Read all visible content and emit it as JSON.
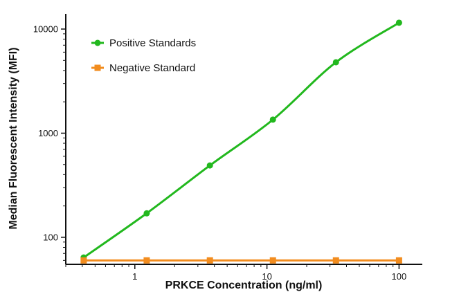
{
  "chart_data": {
    "type": "line",
    "title": "",
    "xlabel": "PRKCE Concentration (ng/ml)",
    "ylabel": "Median Fluorescent Intensity (MFI)",
    "x_scale": "log",
    "y_scale": "log",
    "xlim": [
      0.3,
      150
    ],
    "ylim": [
      55,
      14000
    ],
    "x_ticks": [
      1,
      10,
      100
    ],
    "x_tick_labels": [
      "1",
      "10",
      "100"
    ],
    "y_ticks": [
      100,
      1000,
      10000
    ],
    "y_tick_labels": [
      "100",
      "1000",
      "10000"
    ],
    "grid": false,
    "legend_position": "top-left",
    "series": [
      {
        "name": "Positive Standards",
        "color": "#22b81e",
        "marker": "circle",
        "smooth": true,
        "x": [
          0.41,
          1.23,
          3.7,
          11.1,
          33.3,
          100
        ],
        "y": [
          64,
          170,
          490,
          1350,
          4800,
          11500
        ]
      },
      {
        "name": "Negative Standard",
        "color": "#f28c1e",
        "marker": "square",
        "smooth": false,
        "x": [
          0.41,
          1.23,
          3.7,
          11.1,
          33.3,
          100
        ],
        "y": [
          60,
          60,
          60,
          60,
          60,
          60
        ]
      }
    ]
  }
}
